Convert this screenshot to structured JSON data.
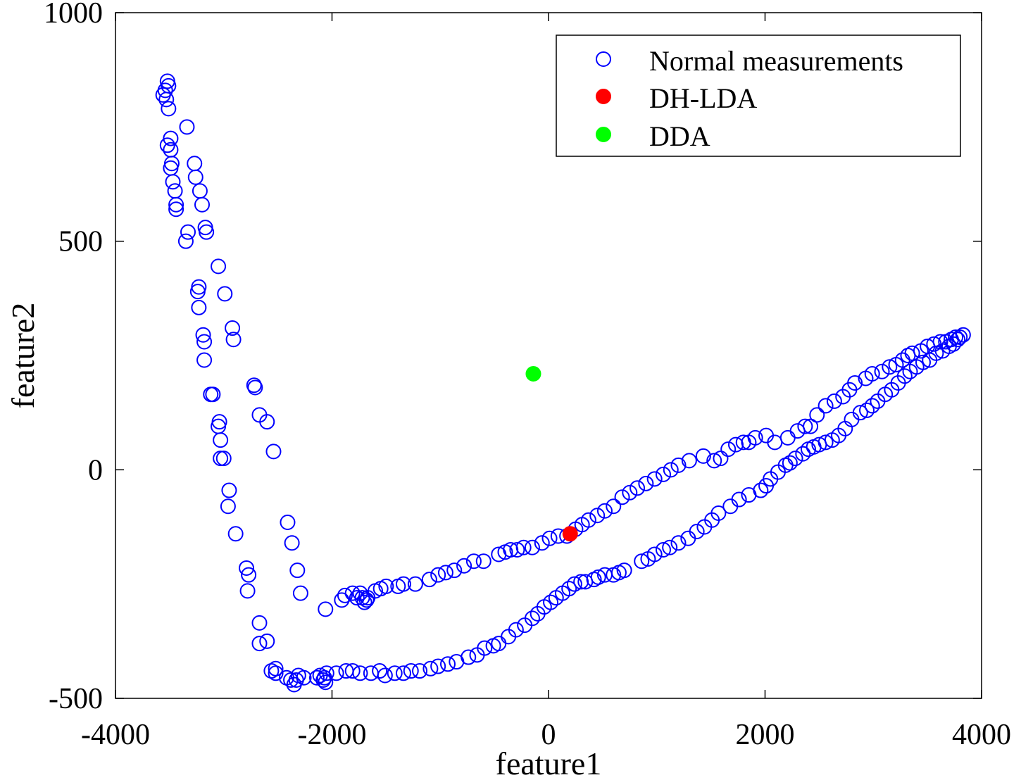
{
  "chart_data": {
    "type": "scatter",
    "title": "",
    "xlabel": "feature1",
    "ylabel": "feature2",
    "xlim": [
      -4000,
      4000
    ],
    "ylim": [
      -500,
      1000
    ],
    "xticks": [
      -4000,
      -2000,
      0,
      2000,
      4000
    ],
    "yticks": [
      -500,
      0,
      500,
      1000
    ],
    "xtick_labels": [
      "-4000",
      "-2000",
      "0",
      "2000",
      "4000"
    ],
    "ytick_labels": [
      "-500",
      "0",
      "500",
      "1000"
    ],
    "grid": false,
    "legend_position": "top-right",
    "series": [
      {
        "name": "Normal measurements",
        "marker": "open-circle",
        "color": "#0000ff",
        "points": [
          [
            -3560,
            820
          ],
          [
            -3540,
            830
          ],
          [
            -3520,
            850
          ],
          [
            -3510,
            840
          ],
          [
            -3530,
            810
          ],
          [
            -3510,
            790
          ],
          [
            -3520,
            710
          ],
          [
            -3490,
            725
          ],
          [
            -3490,
            700
          ],
          [
            -3480,
            670
          ],
          [
            -3490,
            660
          ],
          [
            -3470,
            630
          ],
          [
            -3450,
            610
          ],
          [
            -3440,
            580
          ],
          [
            -3440,
            570
          ],
          [
            -3340,
            750
          ],
          [
            -3330,
            520
          ],
          [
            -3350,
            500
          ],
          [
            -3270,
            670
          ],
          [
            -3260,
            640
          ],
          [
            -3220,
            610
          ],
          [
            -3200,
            580
          ],
          [
            -3170,
            530
          ],
          [
            -3160,
            520
          ],
          [
            -3230,
            400
          ],
          [
            -3240,
            390
          ],
          [
            -3230,
            355
          ],
          [
            -3190,
            295
          ],
          [
            -3180,
            280
          ],
          [
            -3180,
            240
          ],
          [
            -3120,
            165
          ],
          [
            -3100,
            165
          ],
          [
            -3050,
            95
          ],
          [
            -3040,
            105
          ],
          [
            -3030,
            65
          ],
          [
            -3030,
            25
          ],
          [
            -3000,
            25
          ],
          [
            -3050,
            445
          ],
          [
            -2990,
            385
          ],
          [
            -2920,
            310
          ],
          [
            -2910,
            285
          ],
          [
            -2720,
            185
          ],
          [
            -2710,
            180
          ],
          [
            -2670,
            120
          ],
          [
            -2600,
            105
          ],
          [
            -2540,
            40
          ],
          [
            -2950,
            -45
          ],
          [
            -2960,
            -80
          ],
          [
            -2890,
            -140
          ],
          [
            -2790,
            -215
          ],
          [
            -2770,
            -230
          ],
          [
            -2780,
            -265
          ],
          [
            -2670,
            -335
          ],
          [
            -2670,
            -380
          ],
          [
            -2600,
            -375
          ],
          [
            -2560,
            -440
          ],
          [
            -2520,
            -445
          ],
          [
            -2520,
            -435
          ],
          [
            -2410,
            -115
          ],
          [
            -2370,
            -160
          ],
          [
            -2320,
            -220
          ],
          [
            -2290,
            -270
          ],
          [
            -2420,
            -455
          ],
          [
            -2380,
            -460
          ],
          [
            -2350,
            -470
          ],
          [
            -2330,
            -460
          ],
          [
            -2310,
            -450
          ],
          [
            -2260,
            -455
          ],
          [
            -2140,
            -455
          ],
          [
            -2110,
            -450
          ],
          [
            -2080,
            -460
          ],
          [
            -2060,
            -465
          ],
          [
            -2070,
            -455
          ],
          [
            -2050,
            -445
          ],
          [
            -2060,
            -305
          ],
          [
            -1910,
            -285
          ],
          [
            -1880,
            -275
          ],
          [
            -1810,
            -270
          ],
          [
            -1770,
            -280
          ],
          [
            -1740,
            -270
          ],
          [
            -1720,
            -280
          ],
          [
            -1700,
            -290
          ],
          [
            -1680,
            -285
          ],
          [
            -1670,
            -280
          ],
          [
            -1600,
            -265
          ],
          [
            -1550,
            -260
          ],
          [
            -1500,
            -255
          ],
          [
            -1390,
            -255
          ],
          [
            -1340,
            -250
          ],
          [
            -1230,
            -250
          ],
          [
            -1100,
            -240
          ],
          [
            -1020,
            -230
          ],
          [
            -950,
            -225
          ],
          [
            -870,
            -220
          ],
          [
            -780,
            -210
          ],
          [
            -690,
            -200
          ],
          [
            -600,
            -200
          ],
          [
            -460,
            -185
          ],
          [
            -400,
            -180
          ],
          [
            -350,
            -175
          ],
          [
            -290,
            -175
          ],
          [
            -230,
            -170
          ],
          [
            -150,
            -170
          ],
          [
            -60,
            -160
          ],
          [
            10,
            -150
          ],
          [
            90,
            -145
          ],
          [
            170,
            -145
          ],
          [
            250,
            -130
          ],
          [
            310,
            -120
          ],
          [
            370,
            -110
          ],
          [
            450,
            -100
          ],
          [
            520,
            -90
          ],
          [
            600,
            -80
          ],
          [
            680,
            -60
          ],
          [
            750,
            -50
          ],
          [
            820,
            -40
          ],
          [
            900,
            -30
          ],
          [
            980,
            -20
          ],
          [
            1060,
            -10
          ],
          [
            1130,
            0
          ],
          [
            1200,
            10
          ],
          [
            1300,
            20
          ],
          [
            1430,
            30
          ],
          [
            1530,
            20
          ],
          [
            1590,
            25
          ],
          [
            1660,
            45
          ],
          [
            1730,
            55
          ],
          [
            1800,
            60
          ],
          [
            1850,
            60
          ],
          [
            1910,
            70
          ],
          [
            2010,
            75
          ],
          [
            2090,
            60
          ],
          [
            2210,
            70
          ],
          [
            2300,
            85
          ],
          [
            2370,
            95
          ],
          [
            2420,
            95
          ],
          [
            2480,
            120
          ],
          [
            2560,
            140
          ],
          [
            2640,
            150
          ],
          [
            2720,
            160
          ],
          [
            2780,
            175
          ],
          [
            2830,
            190
          ],
          [
            2930,
            200
          ],
          [
            2990,
            210
          ],
          [
            3080,
            215
          ],
          [
            3150,
            225
          ],
          [
            3210,
            230
          ],
          [
            3270,
            240
          ],
          [
            3320,
            250
          ],
          [
            3360,
            255
          ],
          [
            3440,
            260
          ],
          [
            3500,
            270
          ],
          [
            3560,
            275
          ],
          [
            3620,
            280
          ],
          [
            3670,
            280
          ],
          [
            3720,
            285
          ],
          [
            3760,
            290
          ],
          [
            3800,
            290
          ],
          [
            3830,
            295
          ],
          [
            -1960,
            -445
          ],
          [
            -1870,
            -440
          ],
          [
            -1810,
            -440
          ],
          [
            -1740,
            -445
          ],
          [
            -1640,
            -445
          ],
          [
            -1560,
            -440
          ],
          [
            -1510,
            -450
          ],
          [
            -1420,
            -445
          ],
          [
            -1340,
            -445
          ],
          [
            -1270,
            -440
          ],
          [
            -1190,
            -440
          ],
          [
            -1090,
            -435
          ],
          [
            -1020,
            -430
          ],
          [
            -930,
            -425
          ],
          [
            -850,
            -420
          ],
          [
            -740,
            -410
          ],
          [
            -660,
            -405
          ],
          [
            -590,
            -390
          ],
          [
            -510,
            -385
          ],
          [
            -460,
            -380
          ],
          [
            -370,
            -365
          ],
          [
            -300,
            -350
          ],
          [
            -220,
            -340
          ],
          [
            -150,
            -325
          ],
          [
            -100,
            -315
          ],
          [
            -40,
            -300
          ],
          [
            20,
            -290
          ],
          [
            70,
            -280
          ],
          [
            130,
            -270
          ],
          [
            190,
            -260
          ],
          [
            240,
            -250
          ],
          [
            300,
            -245
          ],
          [
            340,
            -245
          ],
          [
            420,
            -240
          ],
          [
            460,
            -235
          ],
          [
            520,
            -230
          ],
          [
            600,
            -230
          ],
          [
            650,
            -225
          ],
          [
            700,
            -220
          ],
          [
            860,
            -200
          ],
          [
            920,
            -195
          ],
          [
            980,
            -185
          ],
          [
            1060,
            -175
          ],
          [
            1120,
            -170
          ],
          [
            1200,
            -160
          ],
          [
            1290,
            -150
          ],
          [
            1370,
            -135
          ],
          [
            1440,
            -125
          ],
          [
            1510,
            -110
          ],
          [
            1570,
            -95
          ],
          [
            1680,
            -80
          ],
          [
            1760,
            -65
          ],
          [
            1850,
            -55
          ],
          [
            1960,
            -45
          ],
          [
            2010,
            -35
          ],
          [
            2050,
            -20
          ],
          [
            2120,
            -5
          ],
          [
            2190,
            10
          ],
          [
            2230,
            15
          ],
          [
            2280,
            25
          ],
          [
            2350,
            35
          ],
          [
            2400,
            45
          ],
          [
            2450,
            50
          ],
          [
            2500,
            55
          ],
          [
            2560,
            60
          ],
          [
            2620,
            65
          ],
          [
            2680,
            75
          ],
          [
            2740,
            90
          ],
          [
            2800,
            110
          ],
          [
            2880,
            125
          ],
          [
            2940,
            130
          ],
          [
            2990,
            140
          ],
          [
            3040,
            150
          ],
          [
            3110,
            165
          ],
          [
            3170,
            175
          ],
          [
            3230,
            190
          ],
          [
            3290,
            205
          ],
          [
            3340,
            215
          ],
          [
            3400,
            225
          ],
          [
            3460,
            235
          ],
          [
            3520,
            240
          ],
          [
            3580,
            255
          ],
          [
            3640,
            260
          ],
          [
            3700,
            270
          ],
          [
            3740,
            275
          ],
          [
            3780,
            285
          ]
        ]
      },
      {
        "name": "DH-LDA",
        "marker": "filled-circle",
        "color": "#ff0000",
        "points": [
          [
            200,
            -140
          ]
        ]
      },
      {
        "name": "DDA",
        "marker": "filled-circle",
        "color": "#00ff00",
        "points": [
          [
            -140,
            210
          ]
        ]
      }
    ]
  }
}
